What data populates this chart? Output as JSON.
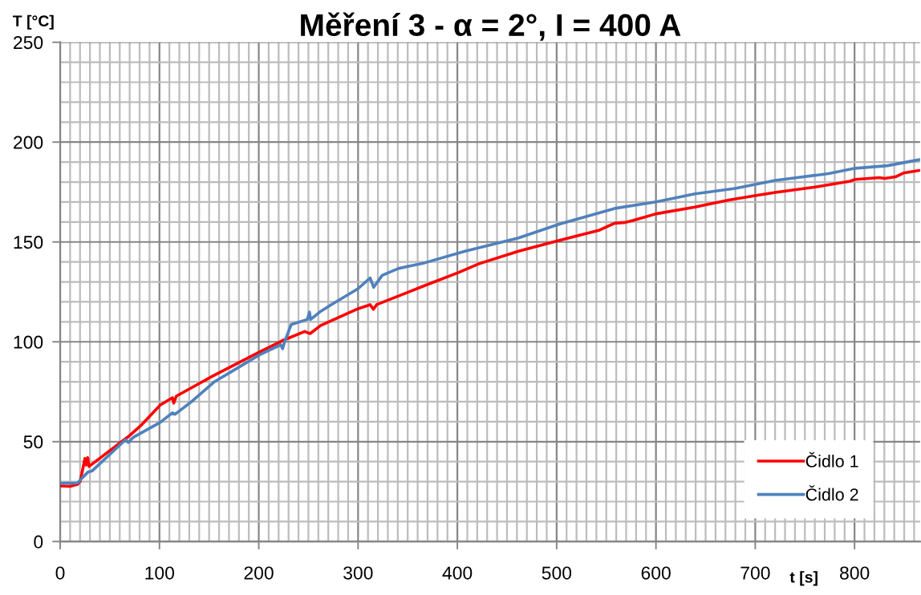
{
  "chart_data": {
    "type": "line",
    "title": "Měření 3 - α = 2°, I = 400 A",
    "xlabel": "t [s]",
    "ylabel": "T [°C]",
    "xlim": [
      0,
      866
    ],
    "ylim": [
      0,
      250
    ],
    "xticks": [
      0,
      100,
      200,
      300,
      400,
      500,
      600,
      700,
      800
    ],
    "yticks": [
      0,
      50,
      100,
      150,
      200,
      250
    ],
    "grid": true,
    "legend": "bottom right",
    "marker": "none",
    "line_style": "solid",
    "series": [
      {
        "name": "Čidlo 1",
        "color": "#ff0000",
        "x": [
          0,
          10,
          17.5,
          20.2,
          25,
          26.1,
          27.7,
          29.1,
          68.1,
          82,
          100.9,
          113,
          114.4,
          117,
          154.5,
          200.5,
          223.4,
          246.3,
          251.7,
          262.4,
          300.1,
          312.2,
          315.4,
          318.7,
          367.4,
          401.1,
          421.3,
          461.6,
          502,
          542.4,
          558.5,
          569.3,
          577.4,
          600.2,
          639.2,
          674.3,
          699.8,
          720,
          760.4,
          795.4,
          800.8,
          825,
          830.4,
          841.1,
          849.2,
          865.4
        ],
        "values": [
          27.8,
          27.6,
          28.6,
          30.2,
          41.6,
          38.3,
          42,
          37.6,
          52.3,
          58.4,
          68.4,
          72,
          69.3,
          72.8,
          83.1,
          94.8,
          100.5,
          105.2,
          104.1,
          108.2,
          116.6,
          118.6,
          116.3,
          118.6,
          128.2,
          134.7,
          139,
          145.4,
          150.7,
          155.8,
          159.4,
          159.8,
          160.8,
          164.1,
          167.5,
          171.1,
          173.2,
          174.8,
          177.5,
          180.4,
          181.3,
          182.2,
          181.8,
          182.6,
          184.5,
          185.8
        ]
      },
      {
        "name": "Čidlo 2",
        "color": "#4f81bd",
        "x": [
          0,
          17.5,
          22.9,
          28.3,
          32.3,
          65.9,
          68.6,
          74,
          100.9,
          113,
          115.7,
          133.2,
          154.8,
          181.7,
          200.5,
          222,
          224,
          225.9,
          232.6,
          248.9,
          251.1,
          252.2,
          262.4,
          273,
          300,
          312.2,
          315.7,
          324.3,
          340.5,
          367.4,
          407.8,
          461.6,
          502,
          558.5,
          600.2,
          639.2,
          679.6,
          699.8,
          720,
          773.8,
          800.8,
          833.1,
          865.4
        ],
        "values": [
          29.2,
          29.3,
          32.2,
          34.9,
          35.4,
          51,
          49.6,
          52.3,
          59.7,
          64.4,
          63.7,
          70.4,
          79.8,
          87.8,
          93.4,
          98.5,
          96.5,
          99.8,
          108.6,
          111.2,
          114.9,
          111.2,
          115.3,
          118.6,
          126.6,
          132,
          127.3,
          133.3,
          136.7,
          139.6,
          145.4,
          152,
          158.8,
          166.8,
          170.1,
          174.1,
          176.8,
          178.8,
          180.8,
          184.2,
          186.9,
          188.2,
          191.2
        ]
      }
    ]
  }
}
